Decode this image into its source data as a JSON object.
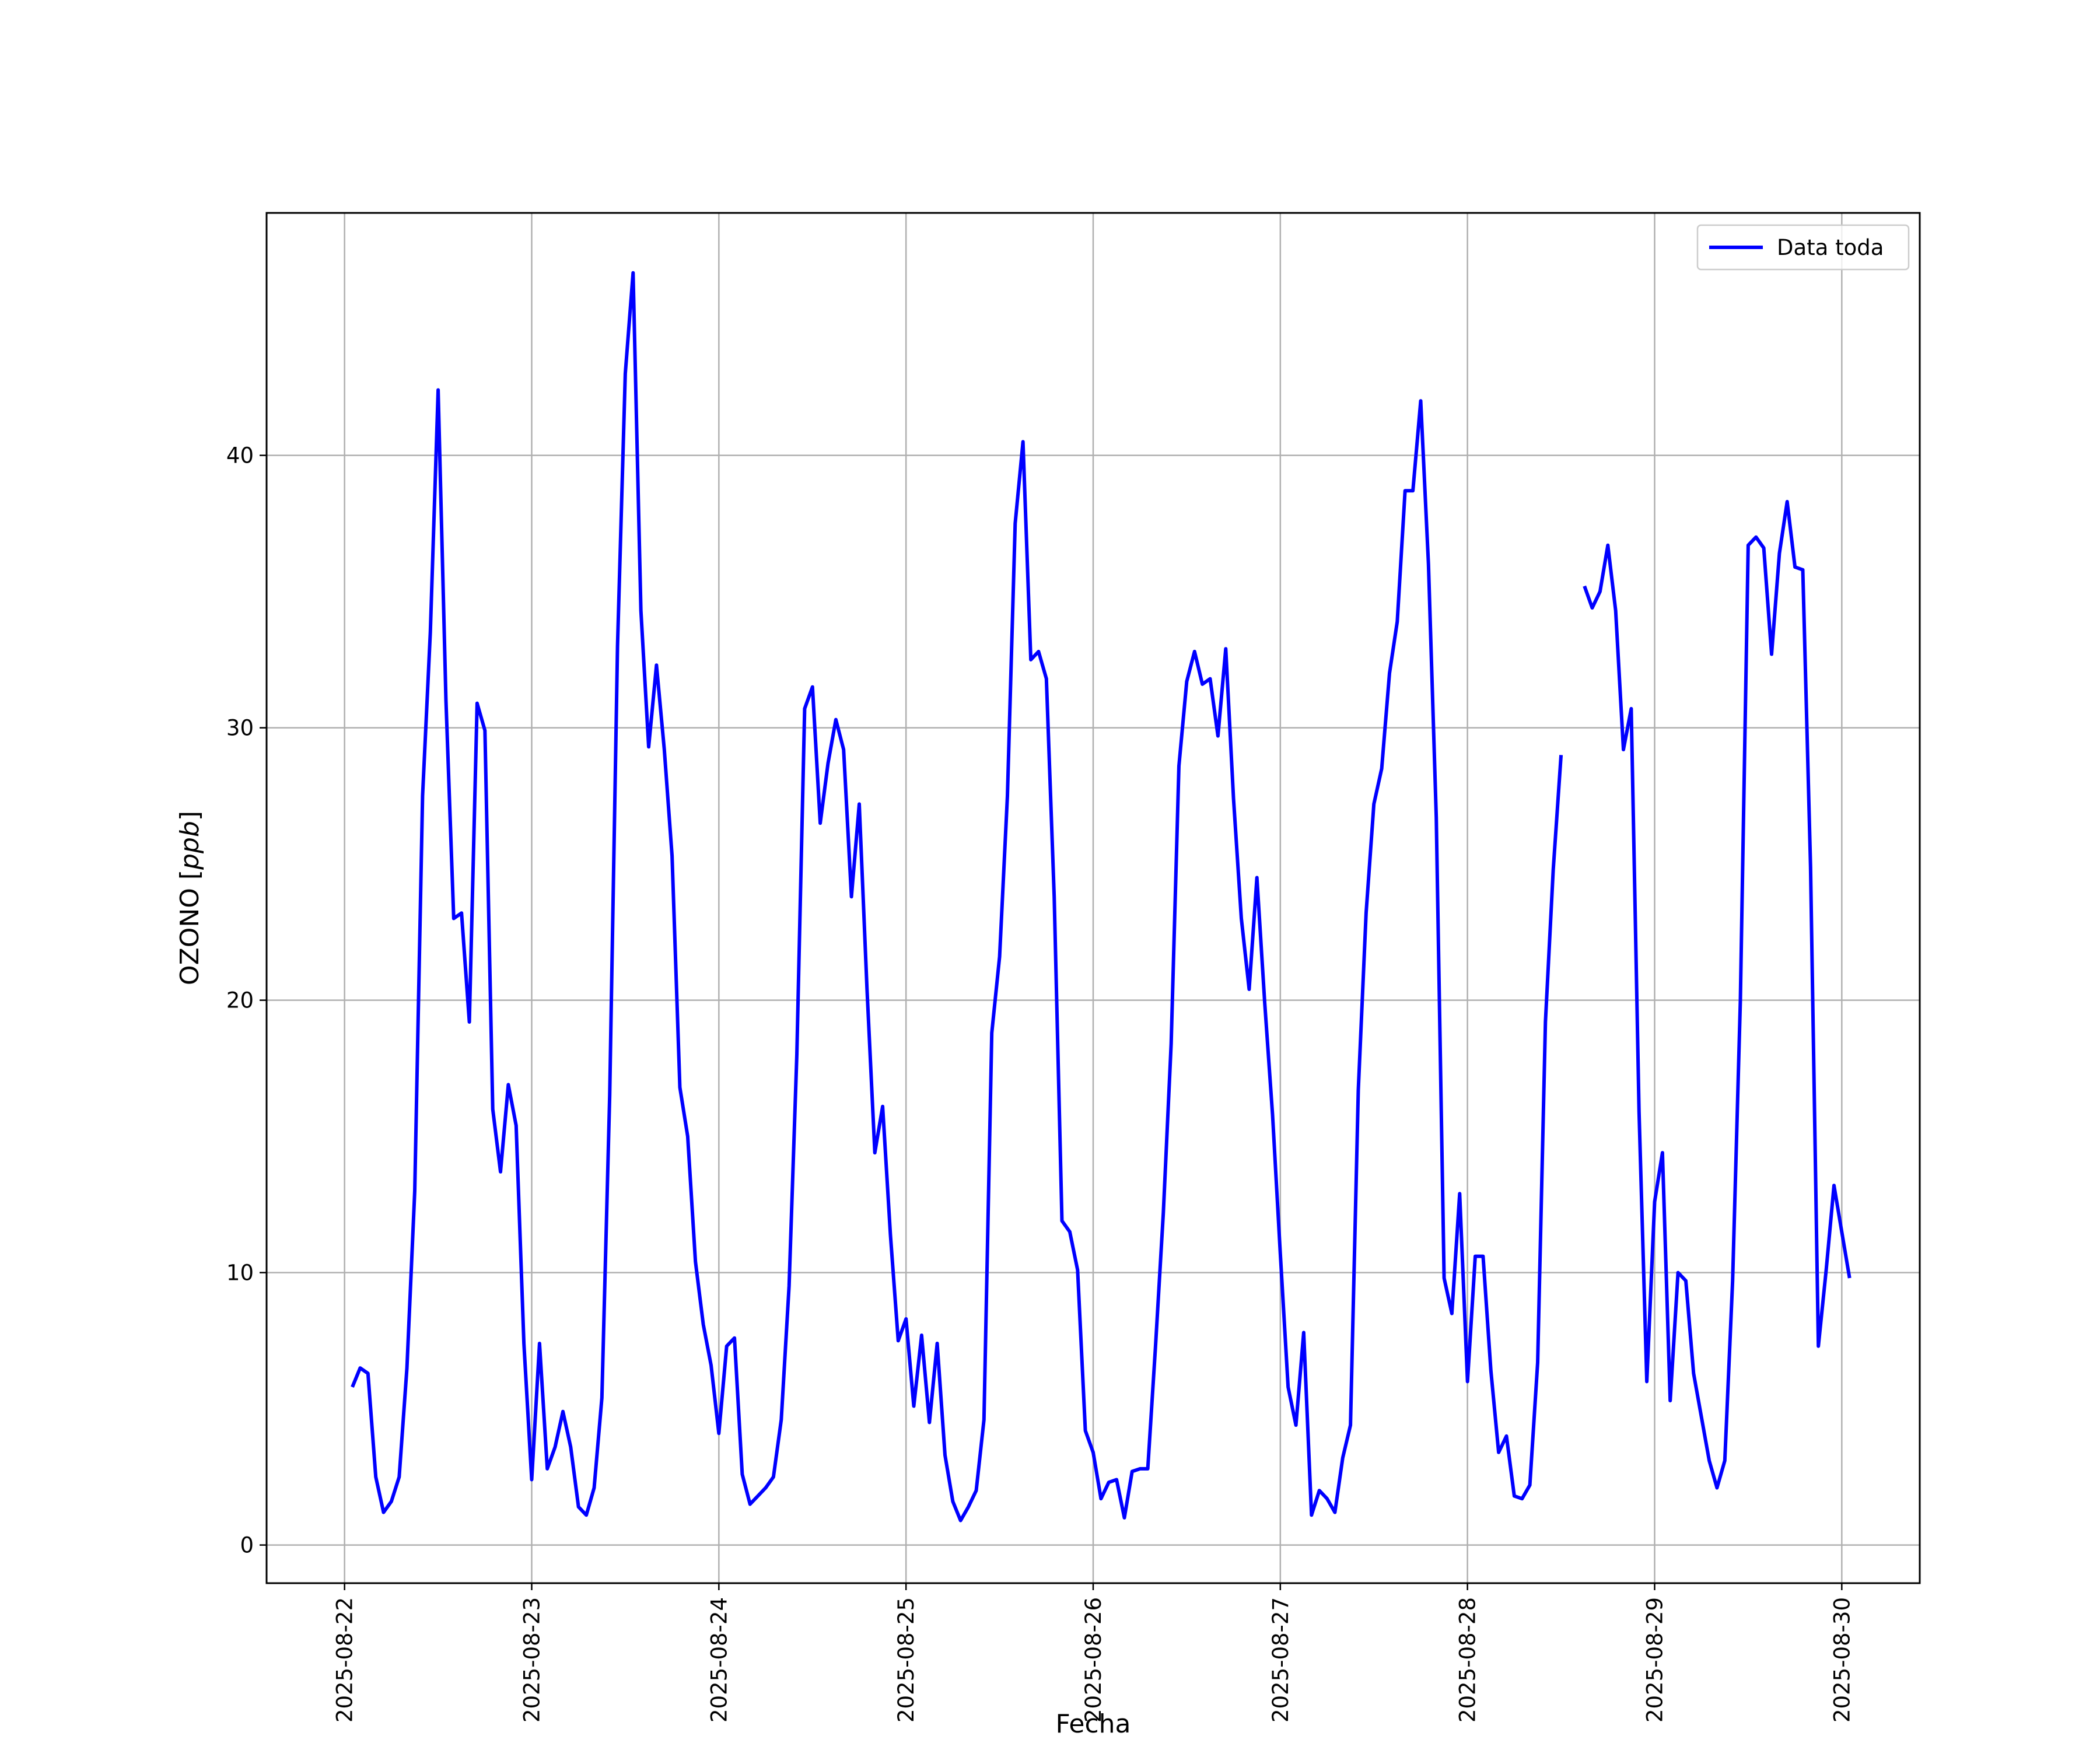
{
  "chart_data": {
    "type": "line",
    "title": "",
    "xlabel": "Fecha",
    "ylabel": "OZONO",
    "ylabel_unit": "ppb",
    "xlim": [
      "2025-08-21T14:00",
      "2025-08-30T10:00"
    ],
    "ylim": [
      -1.4,
      48.9
    ],
    "x_ticks": [
      "2025-08-22",
      "2025-08-23",
      "2025-08-24",
      "2025-08-25",
      "2025-08-26",
      "2025-08-27",
      "2025-08-28",
      "2025-08-29",
      "2025-08-30"
    ],
    "y_ticks": [
      0,
      10,
      20,
      30,
      40
    ],
    "y_tick_labels": [
      "0",
      "10",
      "20",
      "30",
      "40"
    ],
    "grid": true,
    "legend_position": "upper right",
    "series": [
      {
        "name": "Data toda",
        "color": "#0000ff",
        "x_start": "2025-08-22T01:00",
        "x_step_hours": 1,
        "values": [
          5.8,
          6.5,
          6.3,
          2.5,
          1.2,
          1.6,
          2.5,
          6.5,
          13.0,
          27.5,
          33.5,
          42.4,
          31.0,
          23.0,
          23.2,
          19.2,
          30.9,
          29.9,
          16.0,
          13.7,
          16.9,
          15.4,
          7.4,
          2.4,
          7.4,
          2.8,
          3.6,
          4.9,
          3.6,
          1.4,
          1.1,
          2.1,
          5.4,
          16.5,
          33.0,
          43.0,
          46.7,
          34.3,
          29.3,
          32.3,
          29.2,
          25.3,
          16.8,
          15.0,
          10.4,
          8.1,
          6.6,
          4.1,
          7.3,
          7.6,
          2.6,
          1.5,
          1.8,
          2.1,
          2.5,
          4.6,
          9.5,
          18.0,
          30.7,
          31.5,
          26.5,
          28.7,
          30.3,
          29.2,
          23.8,
          27.2,
          20.4,
          14.4,
          16.1,
          11.4,
          7.5,
          8.3,
          5.1,
          7.7,
          4.5,
          7.4,
          3.3,
          1.6,
          0.9,
          1.4,
          2.0,
          4.6,
          18.8,
          21.6,
          27.5,
          37.5,
          40.5,
          32.5,
          32.8,
          31.8,
          23.8,
          11.9,
          11.5,
          10.1,
          4.2,
          3.4,
          1.7,
          2.3,
          2.4,
          1.0,
          2.7,
          2.8,
          2.8,
          7.3,
          12.2,
          18.4,
          28.6,
          31.7,
          32.8,
          31.6,
          31.8,
          29.7,
          32.9,
          27.4,
          23.0,
          20.4,
          24.5,
          19.9,
          15.8,
          10.7,
          5.8,
          4.4,
          7.8,
          1.1,
          2.0,
          1.7,
          1.2,
          3.2,
          4.4,
          16.7,
          23.2,
          27.2,
          28.5,
          32.0,
          33.9,
          38.7,
          38.7,
          42.0,
          36.0,
          26.7,
          9.8,
          8.5,
          12.9,
          6.0,
          10.6,
          10.6,
          6.4,
          3.4,
          4.0,
          1.8,
          1.7,
          2.2,
          6.7,
          19.2,
          24.8,
          29.0,
          null,
          null,
          35.2,
          34.4,
          35.0,
          36.7,
          34.3,
          29.2,
          30.7,
          15.9,
          6.0,
          12.6,
          14.4,
          5.3,
          10.0,
          9.7,
          6.3,
          4.7,
          3.1,
          2.1,
          3.1,
          9.7,
          20.0,
          36.7,
          37.0,
          36.6,
          32.7,
          36.4,
          38.3,
          35.9,
          35.8,
          24.9,
          7.3,
          10.1,
          13.2,
          11.5,
          9.8
        ]
      }
    ]
  }
}
